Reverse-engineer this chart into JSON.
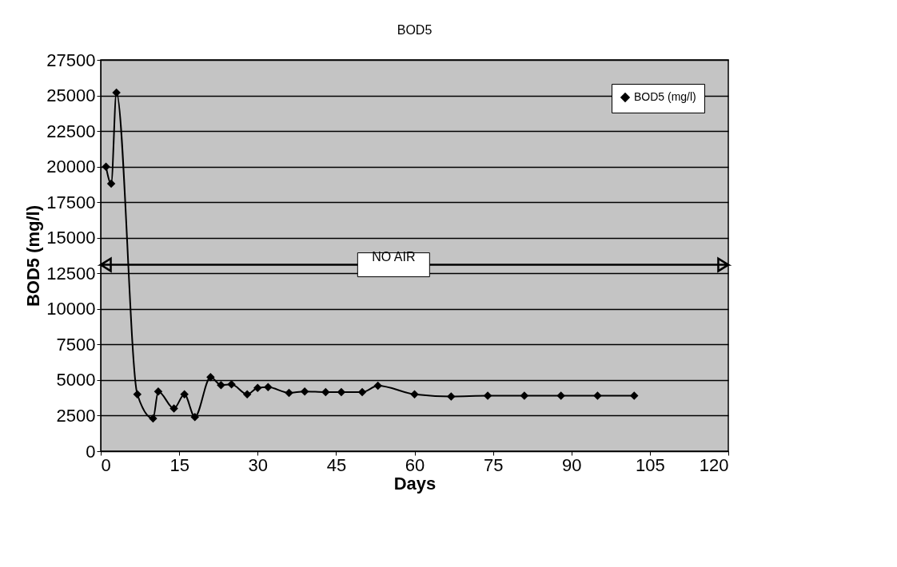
{
  "chart_data": {
    "type": "line",
    "title": "BOD5",
    "xlabel": "Days",
    "ylabel": "BOD5 (mg/l)",
    "x": [
      1,
      2,
      3,
      7,
      10,
      11,
      14,
      16,
      18,
      21,
      23,
      25,
      28,
      30,
      32,
      36,
      39,
      43,
      46,
      50,
      53,
      60,
      67,
      74,
      81,
      88,
      95,
      102
    ],
    "series": [
      {
        "name": "BOD5 (mg/l)",
        "color": "#000000",
        "values": [
          20000,
          18800,
          25200,
          4000,
          2300,
          4200,
          3000,
          4000,
          2400,
          5200,
          4650,
          4700,
          4000,
          4450,
          4500,
          4100,
          4200,
          4150,
          4150,
          4150,
          4600,
          4000,
          3850,
          3900,
          3900,
          3900,
          3900,
          3900
        ]
      }
    ],
    "xlim": [
      0,
      120
    ],
    "xticks": [
      0,
      15,
      30,
      45,
      60,
      75,
      90,
      105,
      120
    ],
    "ylim": [
      0,
      27500
    ],
    "yticks": [
      0,
      2500,
      5000,
      7500,
      10000,
      12500,
      15000,
      17500,
      20000,
      22500,
      25000,
      27500
    ],
    "ref_lines": [
      {
        "axis": "y",
        "value": 13100,
        "label": "NO AIR",
        "color": "#000000",
        "line_style": "solid"
      }
    ],
    "grid": "y",
    "legend": "top right",
    "marker": "diamond",
    "line_style": "solid"
  }
}
